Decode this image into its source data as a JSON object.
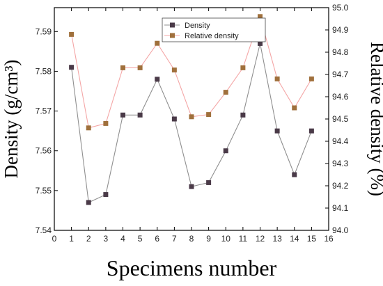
{
  "chart_data": {
    "type": "line",
    "title": "",
    "xlabel": "Specimens number",
    "ylabel": "Density (g/cm³)",
    "y2label": "Relative density (%)",
    "xlim": [
      0,
      16
    ],
    "ylim": [
      7.54,
      7.596
    ],
    "y2lim": [
      94.0,
      95.0
    ],
    "xticks": [
      0,
      1,
      2,
      3,
      4,
      5,
      6,
      7,
      8,
      9,
      10,
      11,
      12,
      13,
      14,
      15,
      16
    ],
    "yticks": [
      7.54,
      7.55,
      7.56,
      7.57,
      7.58,
      7.59
    ],
    "y2ticks": [
      94.0,
      94.1,
      94.2,
      94.3,
      94.4,
      94.5,
      94.6,
      94.7,
      94.8,
      94.9,
      95.0
    ],
    "legend_position": "top-center",
    "grid": false,
    "x": [
      1,
      2,
      3,
      4,
      5,
      6,
      7,
      8,
      9,
      10,
      11,
      12,
      13,
      14,
      15
    ],
    "series": [
      {
        "name": "Density",
        "axis": "left",
        "line_color": "#8f8f8f",
        "marker_color": "#4a3a48",
        "values": [
          7.581,
          7.547,
          7.549,
          7.569,
          7.569,
          7.578,
          7.568,
          7.551,
          7.552,
          7.56,
          7.569,
          7.587,
          7.565,
          7.554,
          7.565
        ]
      },
      {
        "name": "Relative density",
        "axis": "right",
        "line_color": "#f4a6a6",
        "marker_color": "#a0703c",
        "values": [
          94.88,
          94.46,
          94.48,
          94.73,
          94.73,
          94.84,
          94.72,
          94.51,
          94.52,
          94.62,
          94.73,
          94.96,
          94.68,
          94.55,
          94.68
        ]
      }
    ]
  }
}
